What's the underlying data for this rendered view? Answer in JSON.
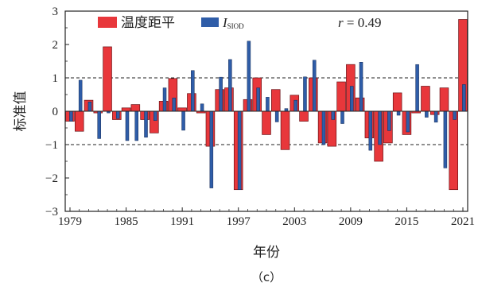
{
  "chart_data": {
    "type": "bar",
    "xlabel": "年份",
    "ylabel": "标准值",
    "caption": "（c）",
    "xlim": [
      1979,
      2021
    ],
    "ylim": [
      -3,
      3
    ],
    "yticks": [
      -3,
      -2,
      -1,
      0,
      1,
      2,
      3
    ],
    "xticks": [
      1979,
      1985,
      1991,
      1997,
      2003,
      2009,
      2015,
      2021
    ],
    "reference_lines": [
      1,
      -1
    ],
    "annotation": {
      "label": "r",
      "value": "0.49"
    },
    "legend_position": "top",
    "colors": {
      "temp": "#e8373b",
      "siod": "#2f5da8",
      "axis": "#222222"
    },
    "x": [
      1979,
      1980,
      1981,
      1982,
      1983,
      1984,
      1985,
      1986,
      1987,
      1988,
      1989,
      1990,
      1991,
      1992,
      1993,
      1994,
      1995,
      1996,
      1997,
      1998,
      1999,
      2000,
      2001,
      2002,
      2003,
      2004,
      2005,
      2006,
      2007,
      2008,
      2009,
      2010,
      2011,
      2012,
      2013,
      2014,
      2015,
      2016,
      2017,
      2018,
      2019,
      2020,
      2021
    ],
    "series": [
      {
        "key": "temp",
        "name": "温度距平",
        "values": [
          -0.3,
          -0.6,
          0.33,
          -0.05,
          1.93,
          -0.25,
          0.1,
          0.2,
          -0.25,
          -0.65,
          0.3,
          0.98,
          0.1,
          0.53,
          -0.05,
          -1.05,
          0.65,
          0.7,
          -2.35,
          0.35,
          1.0,
          -0.7,
          0.65,
          -1.15,
          0.48,
          -0.3,
          1.0,
          -0.95,
          -1.05,
          0.88,
          1.4,
          0.4,
          -0.8,
          -1.5,
          -0.95,
          0.55,
          -0.7,
          -0.05,
          0.75,
          -0.1,
          0.7,
          -2.35,
          2.75
        ]
      },
      {
        "key": "siod",
        "name_main": "I",
        "name_sub": "SIOD",
        "values": [
          -0.3,
          0.93,
          0.28,
          -0.82,
          -0.05,
          -0.22,
          -0.88,
          -0.88,
          -0.78,
          -0.28,
          0.7,
          0.4,
          -0.57,
          1.22,
          0.22,
          -2.3,
          1.02,
          1.55,
          -2.35,
          2.1,
          0.7,
          0.42,
          -0.32,
          0.08,
          0.33,
          1.03,
          1.53,
          -1.0,
          -0.25,
          -0.37,
          0.75,
          1.47,
          -1.17,
          -1.0,
          -0.58,
          -0.12,
          -0.62,
          1.4,
          -0.18,
          -0.33,
          -1.7,
          -0.25,
          0.8
        ]
      }
    ]
  }
}
